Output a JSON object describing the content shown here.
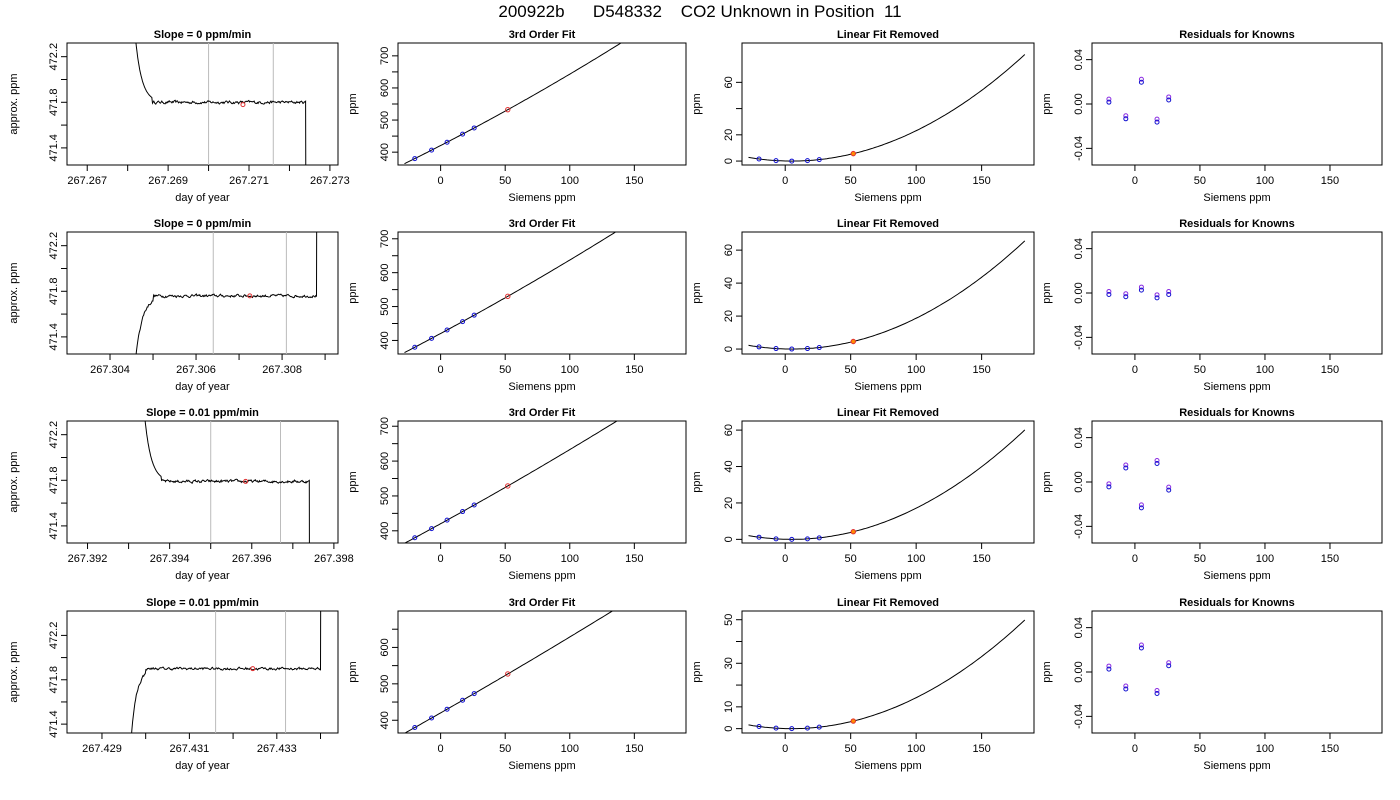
{
  "page_title": "200922b      D548332    CO2 Unknown in Position  11",
  "colors": {
    "line": "#000000",
    "known_point": "#1010d0",
    "unknown_point": "#e03030",
    "unknown_point_fill": "#ff8c00",
    "residual_point": "#8a2be2",
    "vline": "#bbbbbb"
  },
  "chart_data": [
    {
      "type": "line",
      "title": "Slope =  0  ppm/min",
      "xlabel": "day of year",
      "ylabel": "approx. ppm",
      "xlim": [
        267.2665,
        267.2732
      ],
      "ylim": [
        471.25,
        472.32
      ],
      "xticks": [
        267.267,
        267.268,
        267.269,
        267.27,
        267.271,
        267.272,
        267.273
      ],
      "xtick_labels": [
        "267.267",
        "",
        "267.269",
        "",
        "267.271",
        "",
        "267.273"
      ],
      "yticks": [
        471.4,
        471.6,
        471.8,
        472.0,
        472.2
      ],
      "ytick_labels": [
        "471.4",
        "",
        "471.8",
        "",
        "472.2"
      ],
      "vlines": [
        267.27,
        267.2716
      ],
      "marker": [
        267.27085,
        471.78
      ],
      "shape": "fall",
      "start": 267.2681,
      "end": 267.2724,
      "level": 471.8,
      "settle": 267.2686
    },
    {
      "type": "line",
      "title": "3rd Order Fit",
      "xlabel": "Siemens ppm",
      "ylabel": "ppm",
      "xlim": [
        -33,
        190
      ],
      "ylim": [
        360,
        740
      ],
      "xticks": [
        0,
        50,
        100,
        150
      ],
      "xtick_labels": [
        "0",
        "50",
        "100",
        "150"
      ],
      "yticks": [
        400,
        450,
        500,
        550,
        600,
        650,
        700
      ],
      "ytick_labels": [
        "400",
        "",
        "500",
        "",
        "600",
        "",
        "700"
      ],
      "curve": [
        380,
        2.0,
        0.0016
      ],
      "curve_range": [
        -28,
        183
      ],
      "knowns": [
        -20,
        -7,
        5,
        17,
        26
      ],
      "unknown": 52
    },
    {
      "type": "line",
      "title": "Linear Fit Removed",
      "xlabel": "Siemens ppm",
      "ylabel": "ppm",
      "xlim": [
        -33,
        190
      ],
      "ylim": [
        -3,
        90
      ],
      "xticks": [
        0,
        50,
        100,
        150
      ],
      "xtick_labels": [
        "0",
        "50",
        "100",
        "150"
      ],
      "yticks": [
        0,
        20,
        40,
        60
      ],
      "ytick_labels": [
        "0",
        "20",
        "",
        "60"
      ],
      "quad": [
        0.002563,
        5
      ],
      "curve_range": [
        -28,
        183
      ],
      "knowns": [
        -20,
        -7,
        5,
        17,
        26
      ],
      "unknown": 52
    },
    {
      "type": "scatter",
      "title": "Residuals for Knowns",
      "xlabel": "Siemens ppm",
      "ylabel": "ppm",
      "xlim": [
        -33,
        190
      ],
      "ylim": [
        -0.055,
        0.055
      ],
      "xticks": [
        0,
        50,
        100,
        150
      ],
      "xtick_labels": [
        "0",
        "50",
        "100",
        "150"
      ],
      "yticks": [
        -0.04,
        0.0,
        0.04
      ],
      "ytick_labels": [
        "-0.04",
        "0.00",
        "0.04"
      ],
      "x": [
        -20,
        -7,
        5,
        17,
        26
      ],
      "y": [
        0.003,
        -0.012,
        0.021,
        -0.015,
        0.005
      ]
    },
    {
      "type": "line",
      "title": "Slope =  0  ppm/min",
      "xlabel": "day of year",
      "ylabel": "approx. ppm",
      "xlim": [
        267.303,
        267.3093
      ],
      "ylim": [
        471.25,
        472.32
      ],
      "xticks": [
        267.304,
        267.305,
        267.306,
        267.307,
        267.308,
        267.309
      ],
      "xtick_labels": [
        "267.304",
        "",
        "267.306",
        "",
        "267.308",
        ""
      ],
      "yticks": [
        471.4,
        471.6,
        471.8,
        472.0,
        472.2
      ],
      "ytick_labels": [
        "471.4",
        "",
        "471.8",
        "",
        "472.2"
      ],
      "vlines": [
        267.3064,
        267.3081
      ],
      "marker": [
        267.30725,
        471.76
      ],
      "shape": "rise",
      "start": 267.3045,
      "end": 267.3088,
      "level": 471.76,
      "settle": 267.305
    },
    {
      "type": "line",
      "title": "3rd Order Fit",
      "xlabel": "Siemens ppm",
      "ylabel": "ppm",
      "xlim": [
        -33,
        190
      ],
      "ylim": [
        360,
        720
      ],
      "xticks": [
        0,
        50,
        100,
        150
      ],
      "xtick_labels": [
        "0",
        "50",
        "100",
        "150"
      ],
      "yticks": [
        400,
        450,
        500,
        550,
        600,
        650,
        700
      ],
      "ytick_labels": [
        "400",
        "",
        "500",
        "",
        "600",
        "",
        "700"
      ],
      "curve": [
        380,
        2.0,
        0.0012
      ],
      "curve_range": [
        -28,
        183
      ],
      "knowns": [
        -20,
        -7,
        5,
        17,
        26
      ],
      "unknown": 52
    },
    {
      "type": "line",
      "title": "Linear Fit Removed",
      "xlabel": "Siemens ppm",
      "ylabel": "ppm",
      "xlim": [
        -33,
        190
      ],
      "ylim": [
        -3,
        71
      ],
      "xticks": [
        0,
        50,
        100,
        150
      ],
      "xtick_labels": [
        "0",
        "50",
        "100",
        "150"
      ],
      "yticks": [
        0,
        20,
        40,
        60
      ],
      "ytick_labels": [
        "0",
        "20",
        "40",
        "60"
      ],
      "quad": [
        0.002071,
        5
      ],
      "curve_range": [
        -28,
        183
      ],
      "knowns": [
        -20,
        -7,
        5,
        17,
        26
      ],
      "unknown": 52
    },
    {
      "type": "scatter",
      "title": "Residuals for Knowns",
      "xlabel": "Siemens ppm",
      "ylabel": "ppm",
      "xlim": [
        -33,
        190
      ],
      "ylim": [
        -0.055,
        0.055
      ],
      "xticks": [
        0,
        50,
        100,
        150
      ],
      "xtick_labels": [
        "0",
        "50",
        "100",
        "150"
      ],
      "yticks": [
        -0.04,
        0.0,
        0.04
      ],
      "ytick_labels": [
        "-0.04",
        "0.00",
        "0.04"
      ],
      "x": [
        -20,
        -7,
        5,
        17,
        26
      ],
      "y": [
        0.0,
        -0.002,
        0.004,
        -0.003,
        0.0
      ]
    },
    {
      "type": "line",
      "title": "Slope =  0.01  ppm/min",
      "xlabel": "day of year",
      "ylabel": "approx. ppm",
      "xlim": [
        267.3915,
        267.3981
      ],
      "ylim": [
        471.25,
        472.32
      ],
      "xticks": [
        267.392,
        267.393,
        267.394,
        267.395,
        267.396,
        267.397,
        267.398
      ],
      "xtick_labels": [
        "267.392",
        "",
        "267.394",
        "",
        "267.396",
        "",
        "267.398"
      ],
      "yticks": [
        471.4,
        471.6,
        471.8,
        472.0,
        472.2
      ],
      "ytick_labels": [
        "471.4",
        "",
        "471.8",
        "",
        "472.2"
      ],
      "vlines": [
        267.395,
        267.3967
      ],
      "marker": [
        267.39585,
        471.79
      ],
      "shape": "fall",
      "start": 267.3933,
      "end": 267.3974,
      "level": 471.79,
      "settle": 267.3938
    },
    {
      "type": "line",
      "title": "3rd Order Fit",
      "xlabel": "Siemens ppm",
      "ylabel": "ppm",
      "xlim": [
        -33,
        190
      ],
      "ylim": [
        365,
        715
      ],
      "xticks": [
        0,
        50,
        100,
        150
      ],
      "xtick_labels": [
        "0",
        "50",
        "100",
        "150"
      ],
      "yticks": [
        400,
        450,
        500,
        550,
        600,
        650,
        700
      ],
      "ytick_labels": [
        "400",
        "",
        "500",
        "",
        "600",
        "",
        "700"
      ],
      "curve": [
        380,
        2.0,
        0.0009
      ],
      "curve_range": [
        -28,
        183
      ],
      "knowns": [
        -20,
        -7,
        5,
        17,
        26
      ],
      "unknown": 52
    },
    {
      "type": "line",
      "title": "Linear Fit Removed",
      "xlabel": "Siemens ppm",
      "ylabel": "ppm",
      "xlim": [
        -33,
        190
      ],
      "ylim": [
        -2,
        65
      ],
      "xticks": [
        0,
        50,
        100,
        150
      ],
      "xtick_labels": [
        "0",
        "50",
        "100",
        "150"
      ],
      "yticks": [
        0,
        20,
        40,
        60
      ],
      "ytick_labels": [
        "0",
        "20",
        "40",
        "60"
      ],
      "quad": [
        0.001897,
        5
      ],
      "curve_range": [
        -28,
        183
      ],
      "knowns": [
        -20,
        -7,
        5,
        17,
        26
      ],
      "unknown": 52
    },
    {
      "type": "scatter",
      "title": "Residuals for Knowns",
      "xlabel": "Siemens ppm",
      "ylabel": "ppm",
      "xlim": [
        -33,
        190
      ],
      "ylim": [
        -0.055,
        0.055
      ],
      "xticks": [
        0,
        50,
        100,
        150
      ],
      "xtick_labels": [
        "0",
        "50",
        "100",
        "150"
      ],
      "yticks": [
        -0.04,
        0.0,
        0.04
      ],
      "ytick_labels": [
        "-0.04",
        "0.00",
        "0.04"
      ],
      "x": [
        -20,
        -7,
        5,
        17,
        26
      ],
      "y": [
        -0.003,
        0.014,
        -0.022,
        0.018,
        -0.006
      ]
    },
    {
      "type": "line",
      "title": "Slope =  0.01  ppm/min",
      "xlabel": "day of year",
      "ylabel": "approx. ppm",
      "xlim": [
        267.4282,
        267.4344
      ],
      "ylim": [
        471.32,
        472.42
      ],
      "xticks": [
        267.429,
        267.43,
        267.431,
        267.432,
        267.433,
        267.434
      ],
      "xtick_labels": [
        "267.429",
        "",
        "267.431",
        "",
        "267.433",
        ""
      ],
      "yticks": [
        471.4,
        471.6,
        471.8,
        472.0,
        472.2
      ],
      "ytick_labels": [
        "471.4",
        "",
        "471.8",
        "",
        "472.2"
      ],
      "vlines": [
        267.4316,
        267.4332
      ],
      "marker": [
        267.43245,
        471.9
      ],
      "shape": "rise",
      "start": 267.4296,
      "end": 267.434,
      "level": 471.9,
      "settle": 267.43
    },
    {
      "type": "line",
      "title": "3rd Order Fit",
      "xlabel": "Siemens ppm",
      "ylabel": "ppm",
      "xlim": [
        -33,
        190
      ],
      "ylim": [
        365,
        700
      ],
      "xticks": [
        0,
        50,
        100,
        150
      ],
      "xtick_labels": [
        "0",
        "50",
        "100",
        "150"
      ],
      "yticks": [
        400,
        450,
        500,
        550,
        600,
        650
      ],
      "ytick_labels": [
        "400",
        "",
        "500",
        "",
        "600",
        ""
      ],
      "curve": [
        380,
        2.0,
        0.0006
      ],
      "curve_range": [
        -28,
        183
      ],
      "knowns": [
        -20,
        -7,
        5,
        17,
        26
      ],
      "unknown": 52
    },
    {
      "type": "line",
      "title": "Linear Fit Removed",
      "xlabel": "Siemens ppm",
      "ylabel": "ppm",
      "xlim": [
        -33,
        190
      ],
      "ylim": [
        -2,
        54
      ],
      "xticks": [
        0,
        50,
        100,
        150
      ],
      "xtick_labels": [
        "0",
        "50",
        "100",
        "150"
      ],
      "yticks": [
        0,
        10,
        20,
        30,
        40,
        50
      ],
      "ytick_labels": [
        "0",
        "10",
        "",
        "30",
        "",
        "50"
      ],
      "quad": [
        0.001574,
        5
      ],
      "curve_range": [
        -28,
        183
      ],
      "knowns": [
        -20,
        -7,
        5,
        17,
        26
      ],
      "unknown": 52
    },
    {
      "type": "scatter",
      "title": "Residuals for Knowns",
      "xlabel": "Siemens ppm",
      "ylabel": "ppm",
      "xlim": [
        -33,
        190
      ],
      "ylim": [
        -0.055,
        0.055
      ],
      "xticks": [
        0,
        50,
        100,
        150
      ],
      "xtick_labels": [
        "0",
        "50",
        "100",
        "150"
      ],
      "yticks": [
        -0.04,
        0.0,
        0.04
      ],
      "ytick_labels": [
        "-0.04",
        "0.00",
        "0.04"
      ],
      "x": [
        -20,
        -7,
        5,
        17,
        26
      ],
      "y": [
        0.004,
        -0.014,
        0.023,
        -0.018,
        0.007
      ]
    }
  ]
}
